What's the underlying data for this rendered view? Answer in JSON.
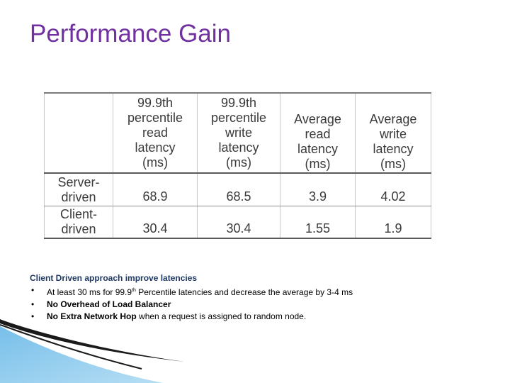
{
  "slide": {
    "title": "Performance Gain"
  },
  "table": {
    "headers": [
      "",
      "99.9th percentile read latency (ms)",
      "99.9th percentile write latency (ms)",
      "Average read latency (ms)",
      "Average write latency (ms)"
    ],
    "header_lines": [
      [],
      [
        "99.9th",
        "percentile",
        "read",
        "latency",
        "(ms)"
      ],
      [
        "99.9th",
        "percentile",
        "write",
        "latency",
        "(ms)"
      ],
      [
        "Average",
        "read",
        "latency",
        "(ms)"
      ],
      [
        "Average",
        "write",
        "latency",
        "(ms)"
      ]
    ],
    "rows": [
      {
        "label_lines": [
          "Server-",
          "driven"
        ],
        "values": [
          "68.9",
          "68.5",
          "3.9",
          "4.02"
        ]
      },
      {
        "label_lines": [
          "Client-",
          "driven"
        ],
        "values": [
          "30.4",
          "30.4",
          "1.55",
          "1.9"
        ]
      }
    ]
  },
  "notes": {
    "heading": "Client Driven approach improve latencies",
    "bullets": [
      {
        "pre": "At least 30 ms for 99.9",
        "sup": "th",
        "post": " Percentile latencies and decrease the average by 3-4 ms"
      },
      {
        "bold": "No Overhead of Load Balancer",
        "rest": ""
      },
      {
        "bold": "No Extra Network Hop",
        "rest": " when a request is assigned to random node."
      }
    ]
  },
  "colors": {
    "title": "#7030a0",
    "heading": "#1f3864",
    "accent_blue": "#5b9bd5"
  }
}
